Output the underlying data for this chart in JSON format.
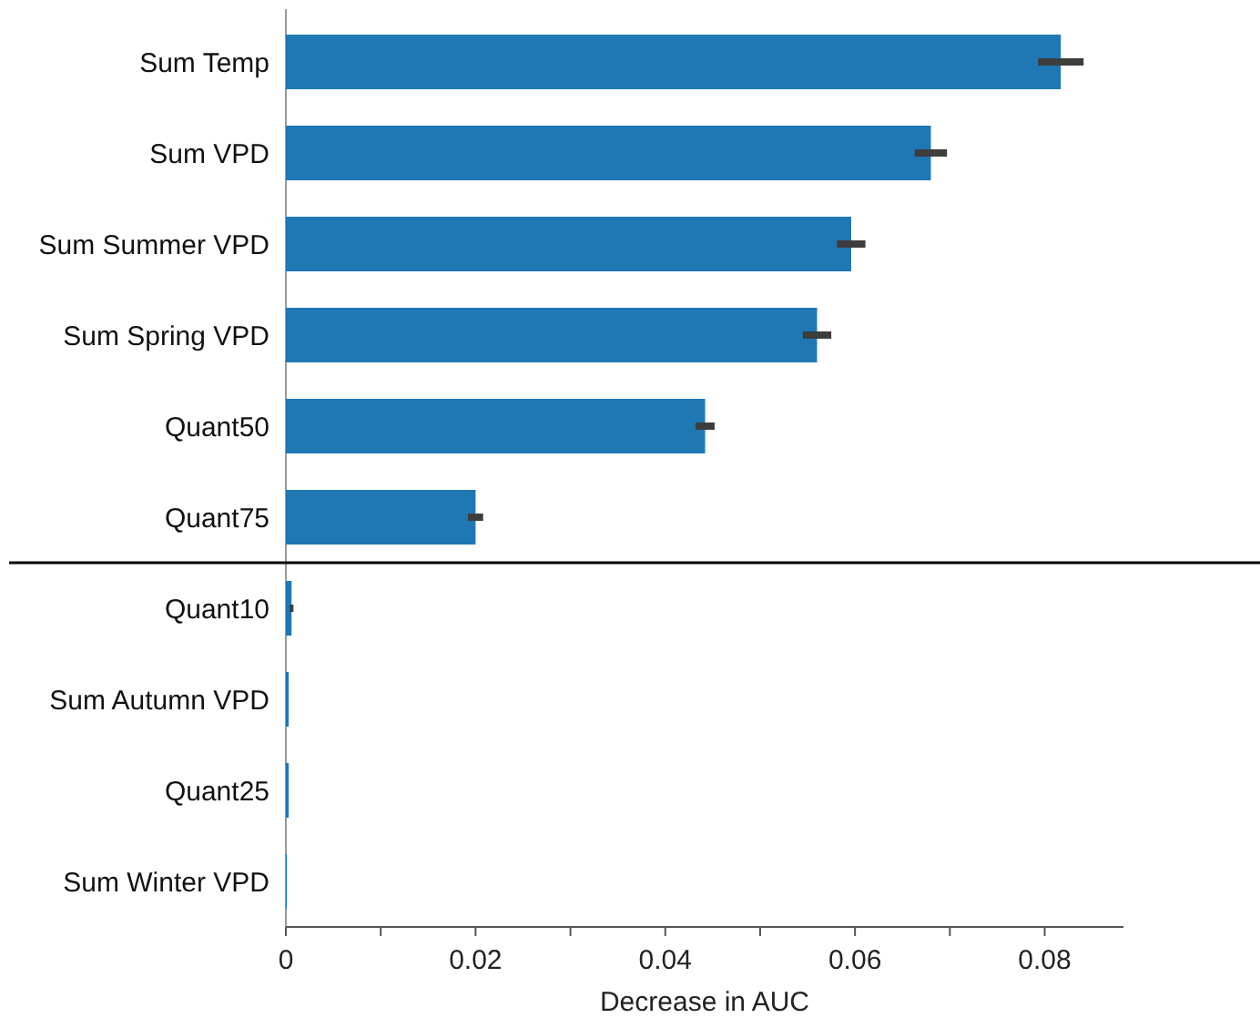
{
  "chart_data": {
    "type": "bar",
    "orientation": "horizontal",
    "xlabel": "Decrease in AUC",
    "categories": [
      "Sum Temp",
      "Sum VPD",
      "Sum Summer VPD",
      "Sum Spring VPD",
      "Quant50",
      "Quant75",
      "Quant10",
      "Sum Autumn VPD",
      "Quant25",
      "Sum Winter VPD"
    ],
    "values": [
      0.0817,
      0.068,
      0.0596,
      0.056,
      0.0442,
      0.02,
      0.0006,
      0.0003,
      0.0003,
      0.0001
    ],
    "errors": [
      0.0024,
      0.0017,
      0.0015,
      0.0015,
      0.001,
      0.0008,
      0.0002,
      null,
      null,
      null
    ],
    "color": "#1f77b4",
    "xlim": [
      0,
      0.0883
    ],
    "xticks": [
      0,
      {
        "value": 0.01,
        "label": null
      },
      {
        "value": 0.02,
        "label": "0.02"
      },
      {
        "value": 0.03,
        "label": null
      },
      {
        "value": 0.04,
        "label": "0.04"
      },
      {
        "value": 0.05,
        "label": null
      },
      {
        "value": 0.06,
        "label": "0.06"
      },
      {
        "value": 0.07,
        "label": null
      },
      {
        "value": 0.08,
        "label": "0.08"
      }
    ],
    "grid": false
  }
}
